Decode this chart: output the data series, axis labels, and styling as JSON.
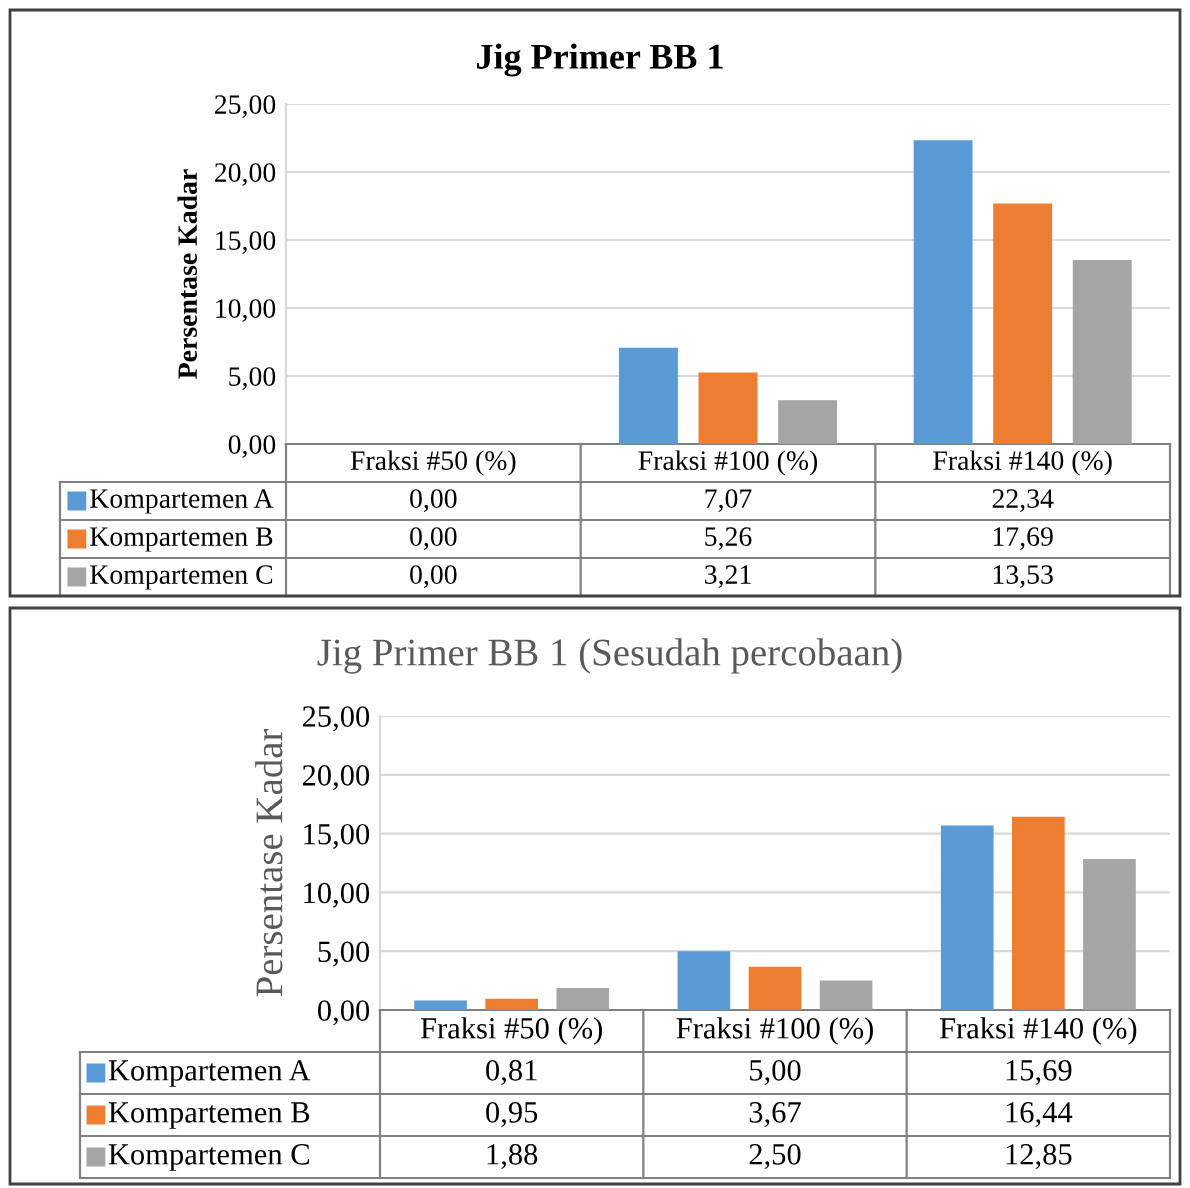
{
  "chart_data": [
    {
      "type": "bar",
      "title": "Jig Primer BB 1",
      "ylabel": "Persentase Kadar",
      "categories": [
        "Fraksi #50 (%)",
        "Fraksi #100 (%)",
        "Fraksi #140 (%)"
      ],
      "series": [
        {
          "name": "Kompartemen A",
          "color": "#5b9bd5",
          "values": [
            0.0,
            7.07,
            22.34
          ],
          "value_labels": [
            "0,00",
            "7,07",
            "22,34"
          ]
        },
        {
          "name": "Kompartemen B",
          "color": "#ed7d31",
          "values": [
            0.0,
            5.26,
            17.69
          ],
          "value_labels": [
            "0,00",
            "5,26",
            "17,69"
          ]
        },
        {
          "name": "Kompartemen C",
          "color": "#a5a5a5",
          "values": [
            0.0,
            3.21,
            13.53
          ],
          "value_labels": [
            "0,00",
            "3,21",
            "13,53"
          ]
        }
      ],
      "ylim": [
        0,
        25
      ],
      "yticks": [
        {
          "value": 0,
          "label": "0,00"
        },
        {
          "value": 5,
          "label": "5,00"
        },
        {
          "value": 10,
          "label": "10,00"
        },
        {
          "value": 15,
          "label": "15,00"
        },
        {
          "value": 20,
          "label": "20,00"
        },
        {
          "value": 25,
          "label": "25,00"
        }
      ],
      "grid": "y",
      "legend": "bottom"
    },
    {
      "type": "bar",
      "title": "Jig Primer BB 1 (Sesudah percobaan)",
      "ylabel": "Persentase Kadar",
      "categories": [
        "Fraksi #50 (%)",
        "Fraksi #100 (%)",
        "Fraksi #140 (%)"
      ],
      "series": [
        {
          "name": "Kompartemen A",
          "color": "#5b9bd5",
          "values": [
            0.81,
            5.0,
            15.69
          ],
          "value_labels": [
            "0,81",
            "5,00",
            "15,69"
          ]
        },
        {
          "name": "Kompartemen B",
          "color": "#ed7d31",
          "values": [
            0.95,
            3.67,
            16.44
          ],
          "value_labels": [
            "0,95",
            "3,67",
            "16,44"
          ]
        },
        {
          "name": "Kompartemen C",
          "color": "#a5a5a5",
          "values": [
            1.88,
            2.5,
            12.85
          ],
          "value_labels": [
            "1,88",
            "2,50",
            "12,85"
          ]
        }
      ],
      "ylim": [
        0,
        25
      ],
      "yticks": [
        {
          "value": 0,
          "label": "0,00"
        },
        {
          "value": 5,
          "label": "5,00"
        },
        {
          "value": 10,
          "label": "10,00"
        },
        {
          "value": 15,
          "label": "15,00"
        },
        {
          "value": 20,
          "label": "20,00"
        },
        {
          "value": 25,
          "label": "25,00"
        }
      ],
      "grid": "y",
      "legend": "bottom"
    }
  ]
}
